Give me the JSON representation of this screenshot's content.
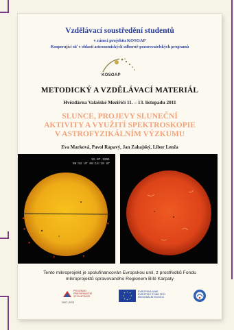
{
  "event": {
    "title": "Vzdělávací soustředění studentů",
    "subtitle": "v rámci projektu KOSOAP",
    "network": "Kooperující síť v oblasti astronomických odborně-pozorovatelských programů"
  },
  "logo": {
    "text": "KOSOAP"
  },
  "document_type": "METODICKÝ A VZDĚLÁVACÍ MATERIÁL",
  "venue": "Hvězdárna Valašské Meziříčí 11. – 13. listopadu 2011",
  "title_lines": [
    "SLUNCE, PROJEVY SLUNEČNÍ",
    "AKTIVITY A VYUŽITÍ SPEKTROSKOPIE",
    "V ASTROFYZIKÁLNÍM VÝZKUMU"
  ],
  "authors": "Eva Marková, Pavol Rapavý, Jan Zahajský, Libor Lenža",
  "photo_caption": {
    "date": "12.07.1991",
    "time": "08:52 UT   08:14:10 UT"
  },
  "support_text": {
    "line1": "Tento mikroprojekt je spolufinancován Evropskou unií, z prostředků Fondu",
    "line2": "mikroprojektů spravovaného Regionem Bílé Karpaty"
  },
  "partners": {
    "program_label_lines": [
      "PROGRAM",
      "PŘESHRANIČNÍ",
      "SPOLUPRÁCE"
    ],
    "program_years": "2007–2013",
    "eu_label_lines": [
      "EVROPSKÁ UNIE",
      "EVROPSKÝ FOND PRO",
      "REGIONÁLNÍ ROZVOJ"
    ]
  },
  "colors": {
    "frame": "#7b3a86",
    "event_text": "#2c3f9b",
    "title": "#f2a27a",
    "sun_yellow": "#f0b418",
    "sun_red": "#e0491c"
  }
}
